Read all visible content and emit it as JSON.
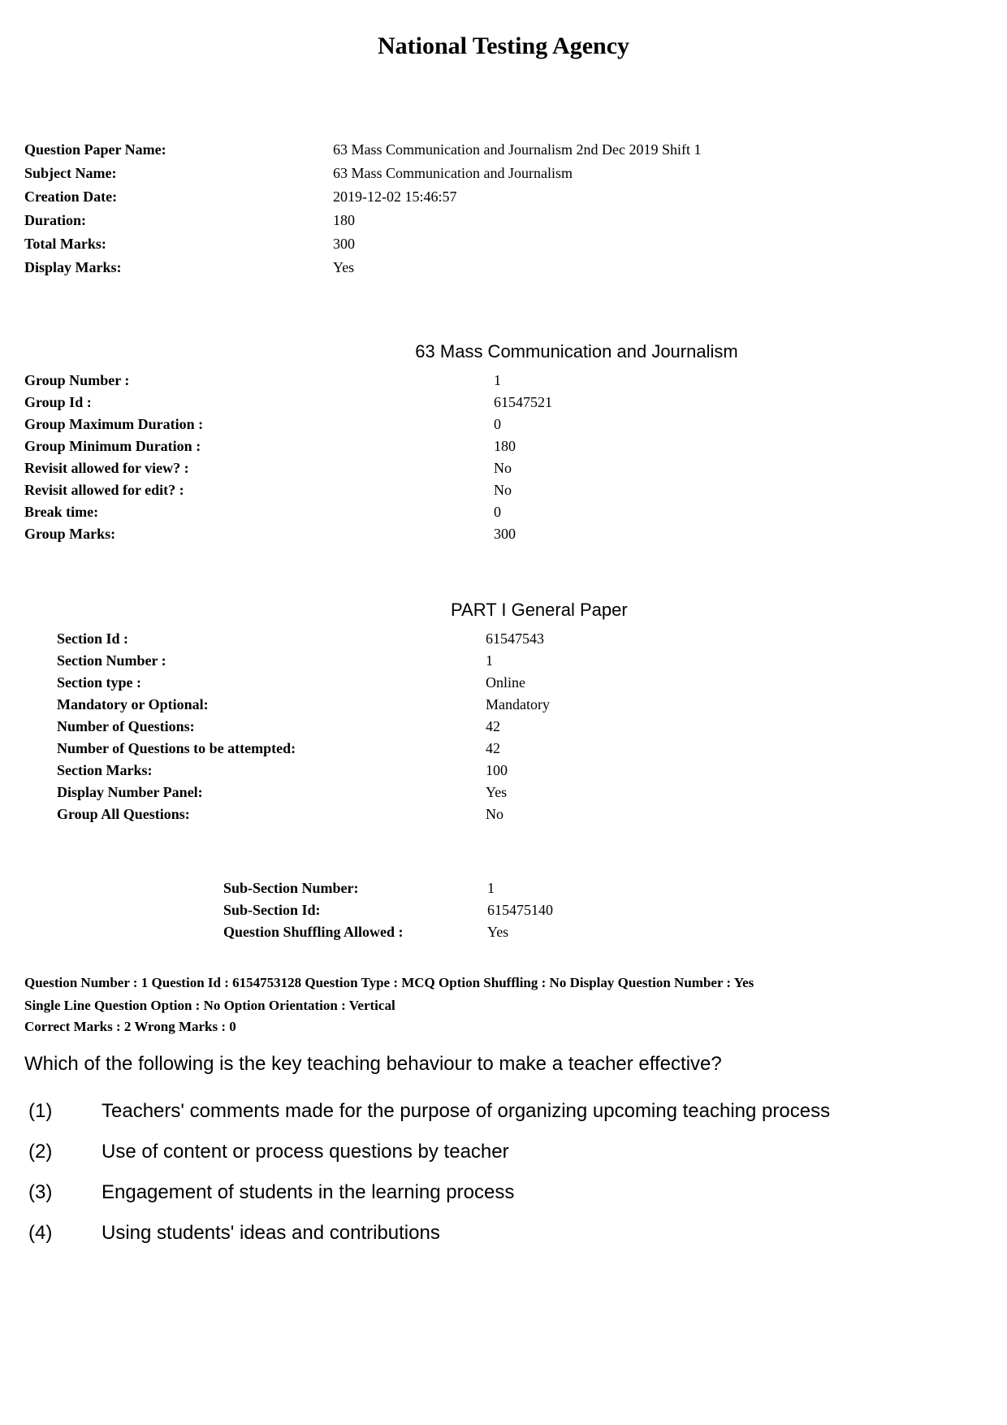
{
  "title": "National Testing Agency",
  "header": {
    "question_paper_name_label": "Question Paper Name:",
    "question_paper_name_value": "63 Mass Communication and Journalism 2nd Dec 2019 Shift 1",
    "subject_name_label": "Subject Name:",
    "subject_name_value": "63 Mass Communication and Journalism",
    "creation_date_label": "Creation Date:",
    "creation_date_value": "2019-12-02 15:46:57",
    "duration_label": "Duration:",
    "duration_value": "180",
    "total_marks_label": "Total Marks:",
    "total_marks_value": "300",
    "display_marks_label": "Display Marks:",
    "display_marks_value": "Yes"
  },
  "group_heading": "63 Mass Communication and Journalism",
  "group": {
    "group_number_label": "Group Number :",
    "group_number_value": "1",
    "group_id_label": "Group Id :",
    "group_id_value": "61547521",
    "group_max_duration_label": "Group Maximum Duration :",
    "group_max_duration_value": "0",
    "group_min_duration_label": "Group Minimum Duration :",
    "group_min_duration_value": "180",
    "revisit_view_label": "Revisit allowed for view? :",
    "revisit_view_value": "No",
    "revisit_edit_label": "Revisit allowed for edit? :",
    "revisit_edit_value": "No",
    "break_time_label": "Break time:",
    "break_time_value": "0",
    "group_marks_label": "Group Marks:",
    "group_marks_value": "300"
  },
  "section_heading": "PART I General Paper",
  "section": {
    "section_id_label": "Section Id :",
    "section_id_value": "61547543",
    "section_number_label": "Section Number :",
    "section_number_value": "1",
    "section_type_label": "Section type :",
    "section_type_value": "Online",
    "mandatory_label": "Mandatory or Optional:",
    "mandatory_value": "Mandatory",
    "num_questions_label": "Number of Questions:",
    "num_questions_value": "42",
    "num_attempted_label": "Number of Questions to be attempted:",
    "num_attempted_value": "42",
    "section_marks_label": "Section Marks:",
    "section_marks_value": "100",
    "display_panel_label": "Display Number Panel:",
    "display_panel_value": "Yes",
    "group_all_label": "Group All Questions:",
    "group_all_value": "No"
  },
  "subsection": {
    "sub_number_label": "Sub-Section Number:",
    "sub_number_value": "1",
    "sub_id_label": "Sub-Section Id:",
    "sub_id_value": "615475140",
    "shuffling_label": "Question Shuffling Allowed :",
    "shuffling_value": "Yes"
  },
  "question": {
    "meta_line1": "Question Number : 1  Question Id : 6154753128  Question Type : MCQ  Option Shuffling : No  Display Question Number : Yes",
    "meta_line2": "Single Line Question Option : No  Option Orientation : Vertical",
    "marks_line": "Correct Marks : 2  Wrong Marks : 0",
    "text": "Which of the following is the key teaching behaviour to make a teacher effective?",
    "options": [
      {
        "num": "(1)",
        "text": "Teachers' comments made for the purpose of organizing upcoming teaching process"
      },
      {
        "num": "(2)",
        "text": "Use of content or process questions by teacher"
      },
      {
        "num": "(3)",
        "text": "Engagement of students in the learning process"
      },
      {
        "num": "(4)",
        "text": "Using students' ideas and contributions"
      }
    ]
  }
}
